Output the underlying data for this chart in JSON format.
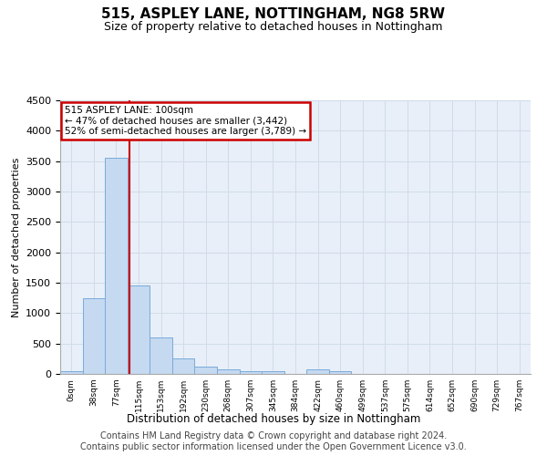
{
  "title": "515, ASPLEY LANE, NOTTINGHAM, NG8 5RW",
  "subtitle": "Size of property relative to detached houses in Nottingham",
  "xlabel": "Distribution of detached houses by size in Nottingham",
  "ylabel": "Number of detached properties",
  "bar_labels": [
    "0sqm",
    "38sqm",
    "77sqm",
    "115sqm",
    "153sqm",
    "192sqm",
    "230sqm",
    "268sqm",
    "307sqm",
    "345sqm",
    "384sqm",
    "422sqm",
    "460sqm",
    "499sqm",
    "537sqm",
    "575sqm",
    "614sqm",
    "652sqm",
    "690sqm",
    "729sqm",
    "767sqm"
  ],
  "bar_values": [
    40,
    1250,
    3550,
    1460,
    600,
    250,
    120,
    75,
    50,
    45,
    5,
    75,
    45,
    0,
    0,
    0,
    0,
    0,
    0,
    0,
    0
  ],
  "bar_color": "#c5d9f0",
  "bar_edge_color": "#7aabdb",
  "grid_color": "#d0dce8",
  "background_color": "#e8eff8",
  "vline_color": "#cc0000",
  "annotation_text": "515 ASPLEY LANE: 100sqm\n← 47% of detached houses are smaller (3,442)\n52% of semi-detached houses are larger (3,789) →",
  "annotation_box_color": "#cc0000",
  "ylim": [
    0,
    4500
  ],
  "yticks": [
    0,
    500,
    1000,
    1500,
    2000,
    2500,
    3000,
    3500,
    4000,
    4500
  ],
  "footer_line1": "Contains HM Land Registry data © Crown copyright and database right 2024.",
  "footer_line2": "Contains public sector information licensed under the Open Government Licence v3.0.",
  "title_fontsize": 11,
  "subtitle_fontsize": 9,
  "footer_fontsize": 7
}
